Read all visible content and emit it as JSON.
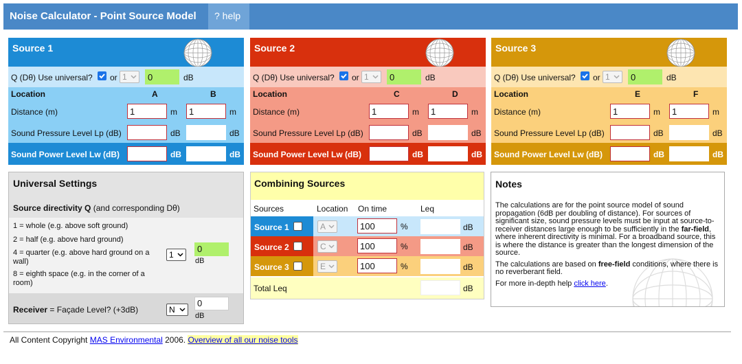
{
  "header": {
    "title": "Noise Calculator - Point Source Model",
    "help": "? help"
  },
  "sources": [
    {
      "title": "Source 1",
      "q_label": "Q (Dθ) Use universal?",
      "or": "or",
      "q_select": "1",
      "q_value": "0",
      "q_unit": "dB",
      "location_label": "Location",
      "locations": [
        "A",
        "B"
      ],
      "distance_label": "Distance (m)",
      "distance": [
        "1",
        "1"
      ],
      "distance_unit": "m",
      "spl_label": "Sound Pressure Level Lp (dB)",
      "spl_unit": "dB",
      "swl_label": "Sound Power Level Lw (dB)",
      "swl_unit": "dB"
    },
    {
      "title": "Source 2",
      "q_label": "Q (Dθ) Use universal?",
      "or": "or",
      "q_select": "1",
      "q_value": "0",
      "q_unit": "dB",
      "location_label": "Location",
      "locations": [
        "C",
        "D"
      ],
      "distance_label": "Distance (m)",
      "distance": [
        "1",
        "1"
      ],
      "distance_unit": "m",
      "spl_label": "Sound Pressure Level Lp (dB)",
      "spl_unit": "dB",
      "swl_label": "Sound Power Level Lw (dB)",
      "swl_unit": "dB"
    },
    {
      "title": "Source 3",
      "q_label": "Q (Dθ) Use universal?",
      "or": "or",
      "q_select": "1",
      "q_value": "0",
      "q_unit": "dB",
      "location_label": "Location",
      "locations": [
        "E",
        "F"
      ],
      "distance_label": "Distance (m)",
      "distance": [
        "1",
        "1"
      ],
      "distance_unit": "m",
      "spl_label": "Sound Pressure Level Lp (dB)",
      "spl_unit": "dB",
      "swl_label": "Sound Power Level Lw (dB)",
      "swl_unit": "dB"
    }
  ],
  "universal": {
    "title": "Universal Settings",
    "directivity_bold": "Source directivity Q",
    "directivity_rest": "(and corresponding Dθ)",
    "options": [
      "1 = whole (e.g. above soft ground)",
      "2 = half (e.g. above hard ground)",
      "4 = quarter (e.g. above hard ground on a wall)",
      "8 = eighth space (e.g. in the corner of a room)"
    ],
    "q_select": "1",
    "q_value": "0",
    "q_unit": "dB",
    "receiver_bold": "Receiver",
    "receiver_rest": "= Façade Level? (+3dB)",
    "receiver_select": "N",
    "receiver_value": "0",
    "receiver_unit": "dB"
  },
  "combining": {
    "title": "Combining Sources",
    "headers": [
      "Sources",
      "Location",
      "On time",
      "Leq"
    ],
    "rows": [
      {
        "name": "Source 1",
        "location": "A",
        "on_time": "100",
        "percent": "%",
        "unit": "dB"
      },
      {
        "name": "Source 2",
        "location": "C",
        "on_time": "100",
        "percent": "%",
        "unit": "dB"
      },
      {
        "name": "Source 3",
        "location": "E",
        "on_time": "100",
        "percent": "%",
        "unit": "dB"
      }
    ],
    "total_label": "Total Leq",
    "total_unit": "dB"
  },
  "notes": {
    "title": "Notes",
    "p1": [
      "The calculations are for the point source model of sound propagation (6dB per doubling of distance). For sources of significant size, sound pressure levels must be input at source-to-receiver distances large enough to be sufficiently in the ",
      "far-field",
      ", where inherent directivity is minimal. For a broadband source, this is where the distance is greater than the longest dimension of the source."
    ],
    "p2": [
      "The calculations are based on ",
      "free-field",
      " conditions, where there is no reverberant field."
    ],
    "p3": [
      "For more in-depth help ",
      "click here",
      "."
    ]
  },
  "footer": [
    "All Content Copyright ",
    "MAS Environmental",
    " 2006. ",
    "Overview of all our noise tools"
  ]
}
